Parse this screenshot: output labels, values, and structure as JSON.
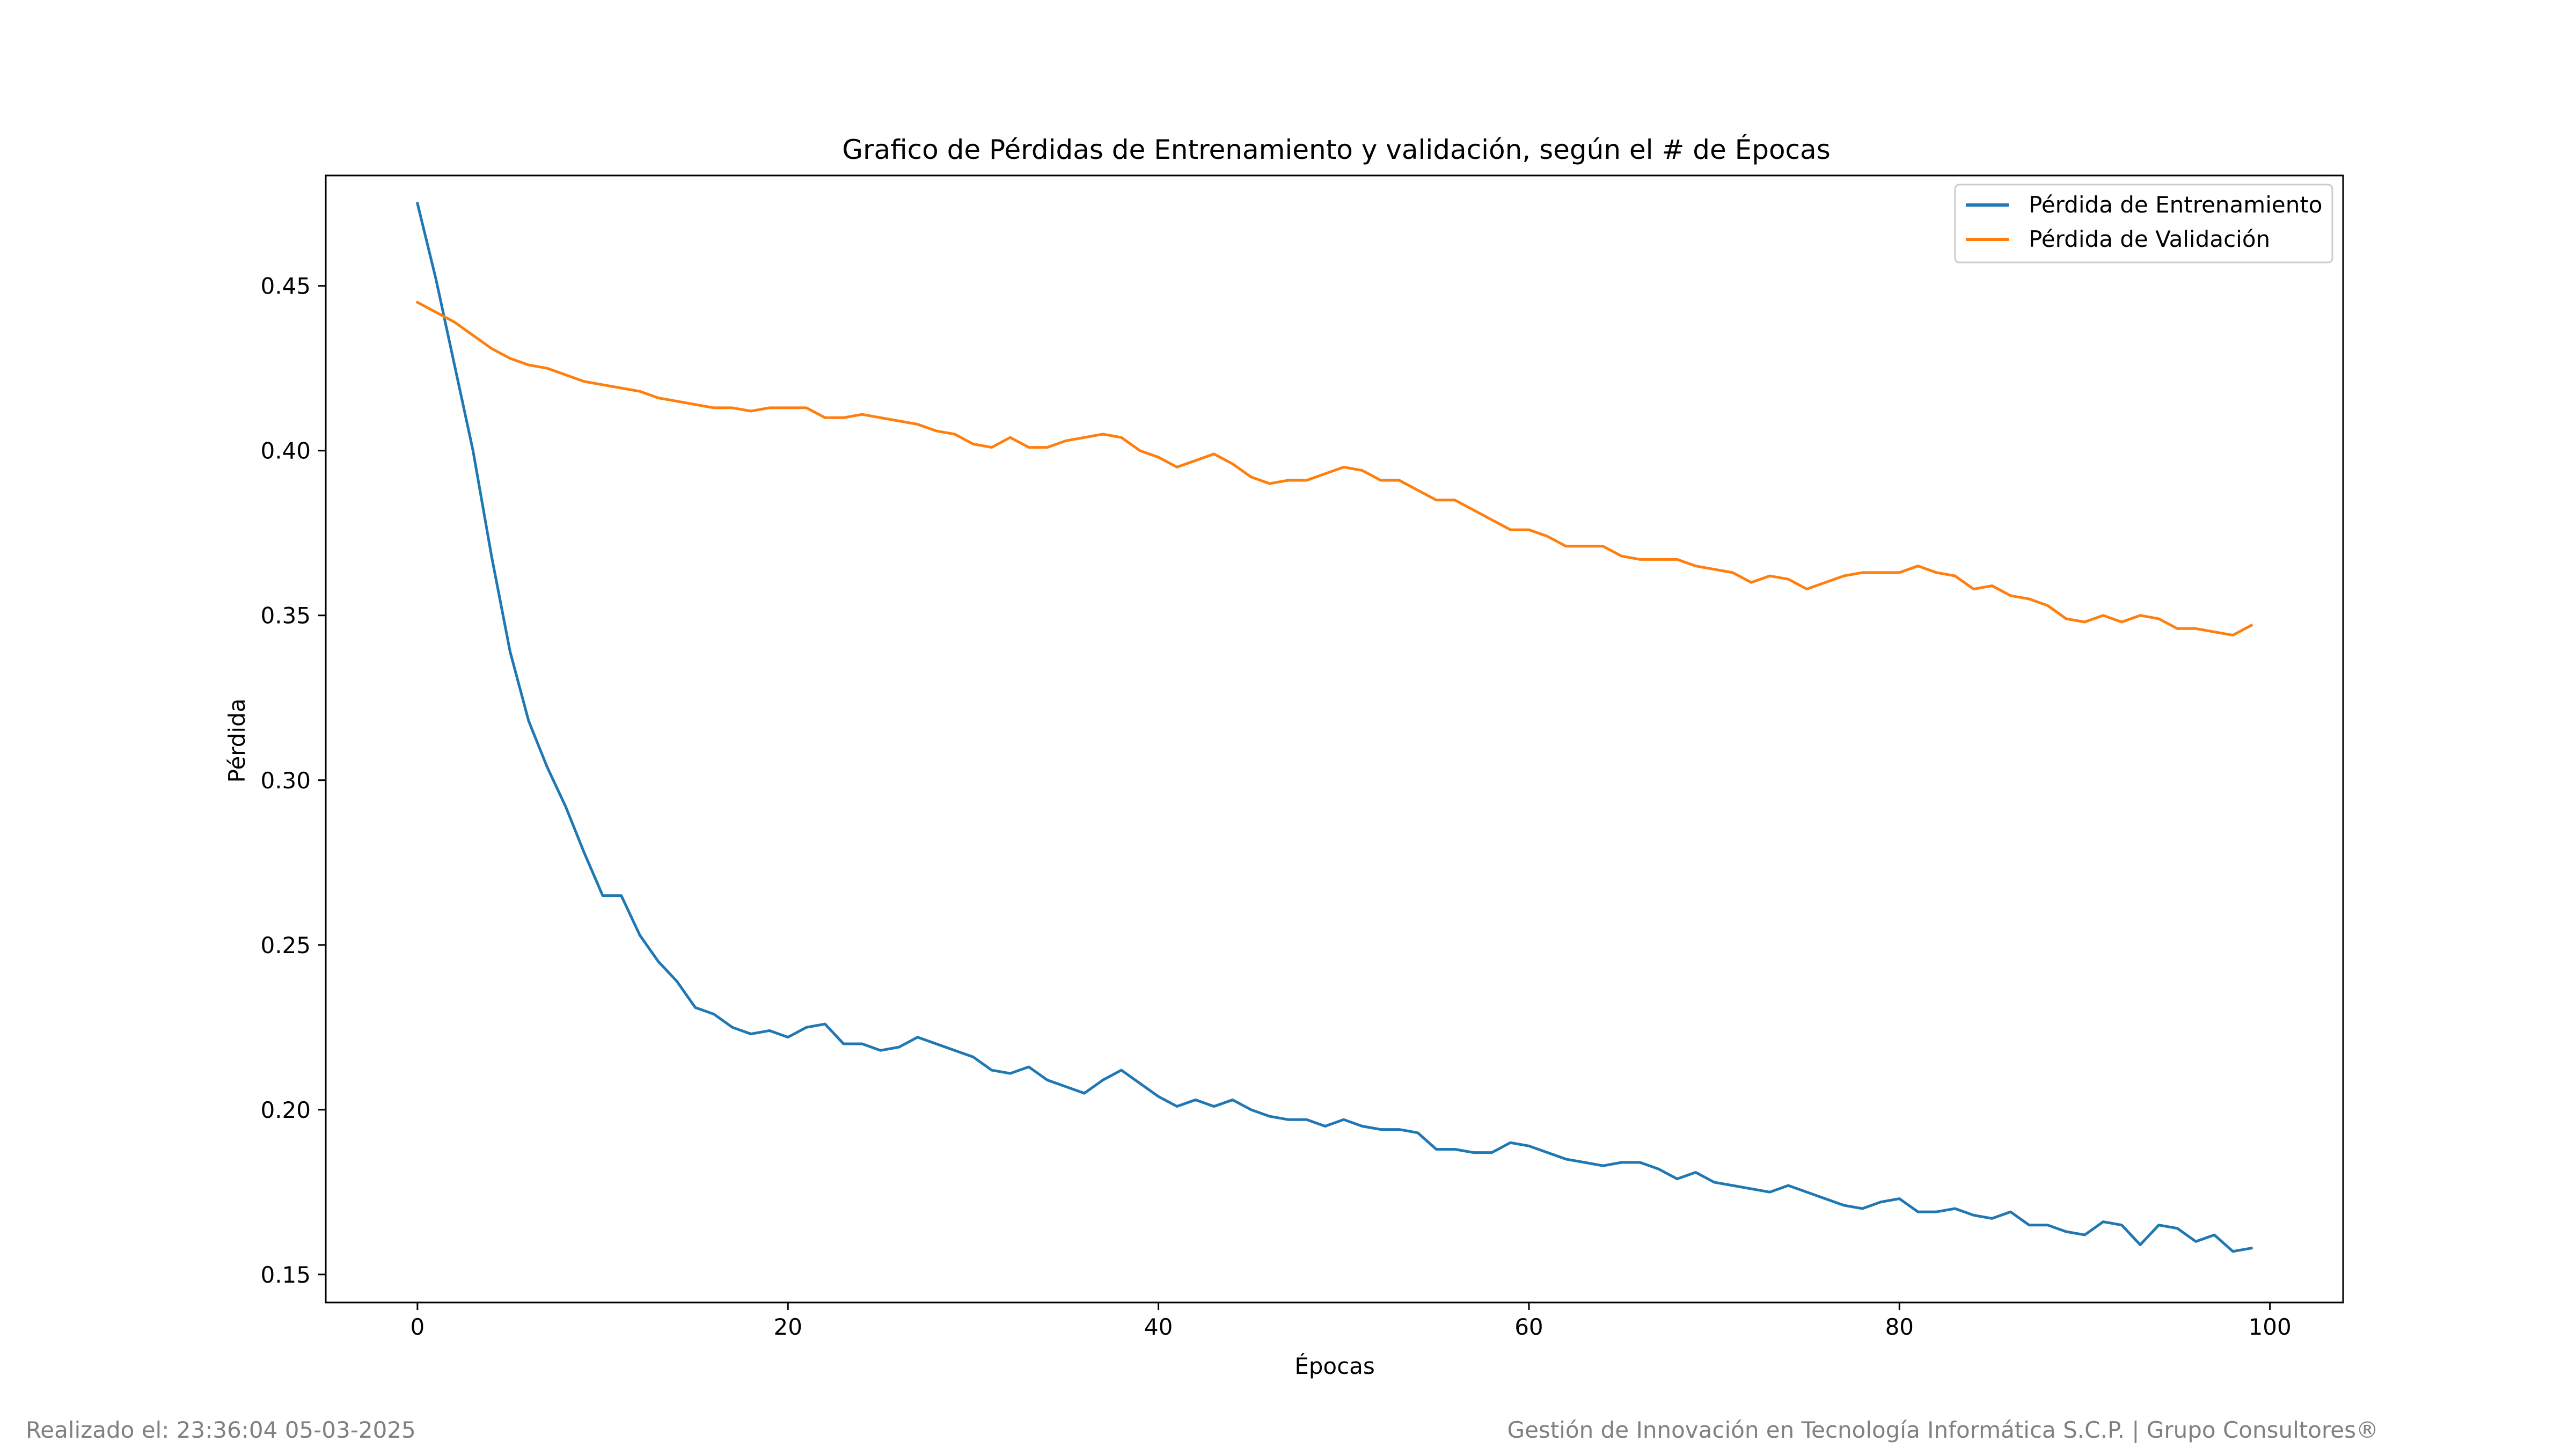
{
  "chart_data": {
    "type": "line",
    "title": "Grafico de Pérdidas de Entrenamiento y validación, según el # de Épocas",
    "xlabel": "Épocas",
    "ylabel": "Pérdida",
    "xlim": [
      -4.95,
      103.95
    ],
    "ylim": [
      0.1415,
      0.4835
    ],
    "xticks": [
      0,
      20,
      40,
      60,
      80,
      100
    ],
    "yticks": [
      0.15,
      0.2,
      0.25,
      0.3,
      0.35,
      0.4,
      0.45
    ],
    "xtick_labels": [
      "0",
      "20",
      "40",
      "60",
      "80",
      "100"
    ],
    "ytick_labels": [
      "0.15",
      "0.20",
      "0.25",
      "0.30",
      "0.35",
      "0.40",
      "0.45"
    ],
    "grid": false,
    "legend_position": "top-right",
    "x": [
      0,
      1,
      2,
      3,
      4,
      5,
      6,
      7,
      8,
      9,
      10,
      11,
      12,
      13,
      14,
      15,
      16,
      17,
      18,
      19,
      20,
      21,
      22,
      23,
      24,
      25,
      26,
      27,
      28,
      29,
      30,
      31,
      32,
      33,
      34,
      35,
      36,
      37,
      38,
      39,
      40,
      41,
      42,
      43,
      44,
      45,
      46,
      47,
      48,
      49,
      50,
      51,
      52,
      53,
      54,
      55,
      56,
      57,
      58,
      59,
      60,
      61,
      62,
      63,
      64,
      65,
      66,
      67,
      68,
      69,
      70,
      71,
      72,
      73,
      74,
      75,
      76,
      77,
      78,
      79,
      80,
      81,
      82,
      83,
      84,
      85,
      86,
      87,
      88,
      89,
      90,
      91,
      92,
      93,
      94,
      95,
      96,
      97,
      98,
      99
    ],
    "series": [
      {
        "name": "Pérdida de Entrenamiento",
        "color": "#1f77b4",
        "values": [
          0.475,
          0.452,
          0.426,
          0.4,
          0.368,
          0.339,
          0.318,
          0.304,
          0.292,
          0.278,
          0.265,
          0.265,
          0.253,
          0.245,
          0.239,
          0.231,
          0.229,
          0.225,
          0.223,
          0.224,
          0.222,
          0.225,
          0.226,
          0.22,
          0.22,
          0.218,
          0.219,
          0.222,
          0.22,
          0.218,
          0.216,
          0.212,
          0.211,
          0.213,
          0.209,
          0.207,
          0.205,
          0.209,
          0.212,
          0.208,
          0.204,
          0.201,
          0.203,
          0.201,
          0.203,
          0.2,
          0.198,
          0.197,
          0.197,
          0.195,
          0.197,
          0.195,
          0.194,
          0.194,
          0.193,
          0.188,
          0.188,
          0.187,
          0.187,
          0.19,
          0.189,
          0.187,
          0.185,
          0.184,
          0.183,
          0.184,
          0.184,
          0.182,
          0.179,
          0.181,
          0.178,
          0.177,
          0.176,
          0.175,
          0.177,
          0.175,
          0.173,
          0.171,
          0.17,
          0.172,
          0.173,
          0.169,
          0.169,
          0.17,
          0.168,
          0.167,
          0.169,
          0.165,
          0.165,
          0.163,
          0.162,
          0.166,
          0.165,
          0.159,
          0.165,
          0.164,
          0.16,
          0.162,
          0.157,
          0.158
        ]
      },
      {
        "name": "Pérdida de Validación",
        "color": "#ff7f0e",
        "values": [
          0.445,
          0.442,
          0.439,
          0.435,
          0.431,
          0.428,
          0.426,
          0.425,
          0.423,
          0.421,
          0.42,
          0.419,
          0.418,
          0.416,
          0.415,
          0.414,
          0.413,
          0.413,
          0.412,
          0.413,
          0.413,
          0.413,
          0.41,
          0.41,
          0.411,
          0.41,
          0.409,
          0.408,
          0.406,
          0.405,
          0.402,
          0.401,
          0.404,
          0.401,
          0.401,
          0.403,
          0.404,
          0.405,
          0.404,
          0.4,
          0.398,
          0.395,
          0.397,
          0.399,
          0.396,
          0.392,
          0.39,
          0.391,
          0.391,
          0.393,
          0.395,
          0.394,
          0.391,
          0.391,
          0.388,
          0.385,
          0.385,
          0.382,
          0.379,
          0.376,
          0.376,
          0.374,
          0.371,
          0.371,
          0.371,
          0.368,
          0.367,
          0.367,
          0.367,
          0.365,
          0.364,
          0.363,
          0.36,
          0.362,
          0.361,
          0.358,
          0.36,
          0.362,
          0.363,
          0.363,
          0.363,
          0.365,
          0.363,
          0.362,
          0.358,
          0.359,
          0.356,
          0.355,
          0.353,
          0.349,
          0.348,
          0.35,
          0.348,
          0.35,
          0.349,
          0.346,
          0.346,
          0.345,
          0.344,
          0.347
        ]
      }
    ]
  },
  "footer": {
    "left": "Realizado el: 23:36:04 05-03-2025",
    "right": "Gestión de Innovación en Tecnología Informática S.C.P. | Grupo Consultores®"
  }
}
